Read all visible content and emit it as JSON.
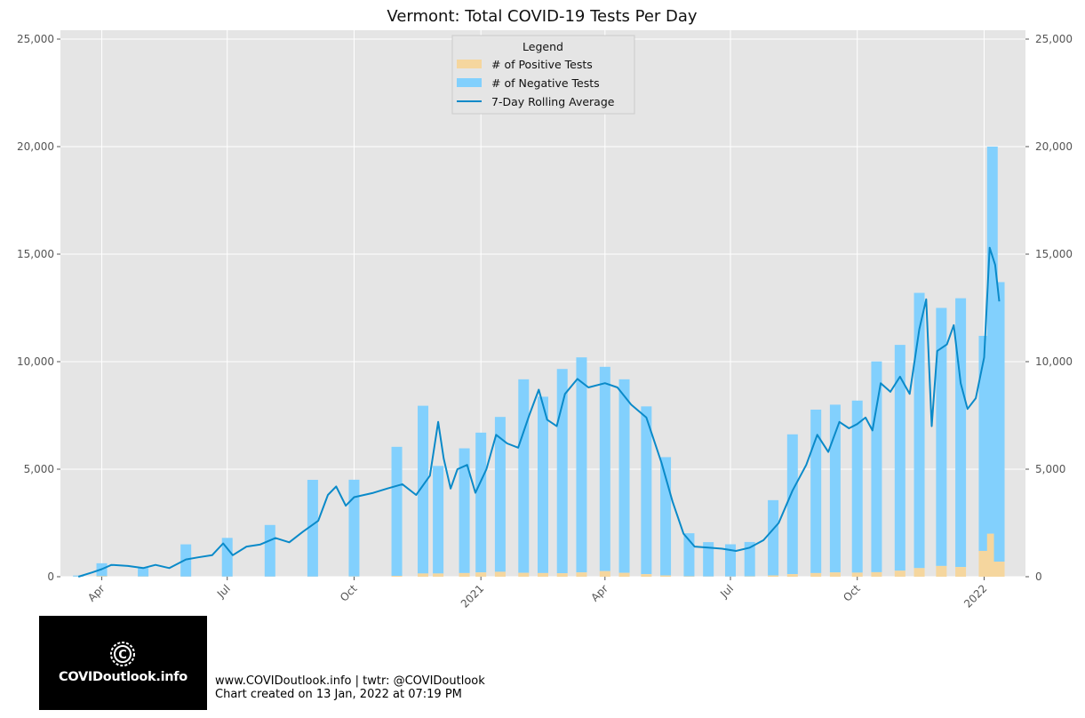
{
  "chart_data": {
    "type": "bar",
    "title": "Vermont: Total COVID-19 Tests Per Day",
    "ylim": [
      0,
      25000
    ],
    "y_ticks": [
      "0",
      "5,000",
      "10,000",
      "15,000",
      "20,000",
      "25,000"
    ],
    "y_tick_values": [
      0,
      5000,
      10000,
      15000,
      20000,
      25000
    ],
    "x_ticks": [
      "Apr",
      "Jul",
      "Oct",
      "2021",
      "Apr",
      "Jul",
      "Oct",
      "2022"
    ],
    "x_tick_dates": [
      "2020-04-01",
      "2020-07-01",
      "2020-10-01",
      "2021-01-01",
      "2021-04-01",
      "2021-07-01",
      "2021-10-01",
      "2022-01-01"
    ],
    "x_range": [
      "2020-03-02",
      "2022-01-31"
    ],
    "grid": true,
    "background": "#e5e5e5",
    "stacked": true,
    "legend": {
      "title": "Legend",
      "placement": "top-center",
      "entries": [
        "# of Positive Tests",
        "# of Negative Tests",
        "7-Day Rolling Average"
      ]
    },
    "series": [
      {
        "name": "# of Positive Tests",
        "kind": "bar",
        "color": "#f5d69e",
        "points": [
          [
            "2020-03-15",
            5
          ],
          [
            "2020-04-01",
            25
          ],
          [
            "2020-05-01",
            8
          ],
          [
            "2020-06-01",
            5
          ],
          [
            "2020-07-01",
            5
          ],
          [
            "2020-08-01",
            5
          ],
          [
            "2020-09-01",
            5
          ],
          [
            "2020-10-01",
            10
          ],
          [
            "2020-11-01",
            40
          ],
          [
            "2020-11-20",
            150
          ],
          [
            "2020-12-01",
            150
          ],
          [
            "2020-12-20",
            170
          ],
          [
            "2021-01-01",
            200
          ],
          [
            "2021-01-15",
            230
          ],
          [
            "2021-02-01",
            180
          ],
          [
            "2021-02-15",
            170
          ],
          [
            "2021-03-01",
            160
          ],
          [
            "2021-03-15",
            200
          ],
          [
            "2021-04-01",
            260
          ],
          [
            "2021-04-15",
            180
          ],
          [
            "2021-05-01",
            120
          ],
          [
            "2021-05-15",
            60
          ],
          [
            "2021-06-01",
            20
          ],
          [
            "2021-06-15",
            8
          ],
          [
            "2021-07-01",
            8
          ],
          [
            "2021-07-15",
            15
          ],
          [
            "2021-08-01",
            60
          ],
          [
            "2021-08-15",
            120
          ],
          [
            "2021-09-01",
            170
          ],
          [
            "2021-09-15",
            200
          ],
          [
            "2021-10-01",
            190
          ],
          [
            "2021-10-15",
            210
          ],
          [
            "2021-11-01",
            280
          ],
          [
            "2021-11-15",
            400
          ],
          [
            "2021-12-01",
            500
          ],
          [
            "2021-12-15",
            450
          ],
          [
            "2022-01-01",
            1200
          ],
          [
            "2022-01-07",
            2000
          ],
          [
            "2022-01-12",
            700
          ]
        ]
      },
      {
        "name": "# of Negative Tests",
        "kind": "bar",
        "color": "#82d0fd",
        "points": [
          [
            "2020-03-15",
            50
          ],
          [
            "2020-04-01",
            600
          ],
          [
            "2020-05-01",
            400
          ],
          [
            "2020-06-01",
            1500
          ],
          [
            "2020-07-01",
            1800
          ],
          [
            "2020-08-01",
            2400
          ],
          [
            "2020-09-01",
            4500
          ],
          [
            "2020-10-01",
            4500
          ],
          [
            "2020-11-01",
            6000
          ],
          [
            "2020-11-20",
            7800
          ],
          [
            "2020-12-01",
            5000
          ],
          [
            "2020-12-20",
            5800
          ],
          [
            "2021-01-01",
            6500
          ],
          [
            "2021-01-15",
            7200
          ],
          [
            "2021-02-01",
            9000
          ],
          [
            "2021-02-15",
            8200
          ],
          [
            "2021-03-01",
            9500
          ],
          [
            "2021-03-15",
            10000
          ],
          [
            "2021-04-01",
            9500
          ],
          [
            "2021-04-15",
            9000
          ],
          [
            "2021-05-01",
            7800
          ],
          [
            "2021-05-15",
            5500
          ],
          [
            "2021-06-01",
            2000
          ],
          [
            "2021-06-15",
            1600
          ],
          [
            "2021-07-01",
            1500
          ],
          [
            "2021-07-15",
            1600
          ],
          [
            "2021-08-01",
            3500
          ],
          [
            "2021-08-15",
            6500
          ],
          [
            "2021-09-01",
            7600
          ],
          [
            "2021-09-15",
            7800
          ],
          [
            "2021-10-01",
            8000
          ],
          [
            "2021-10-15",
            9800
          ],
          [
            "2021-11-01",
            10500
          ],
          [
            "2021-11-15",
            12800
          ],
          [
            "2021-12-01",
            12000
          ],
          [
            "2021-12-15",
            12500
          ],
          [
            "2022-01-01",
            10000
          ],
          [
            "2022-01-07",
            18000
          ],
          [
            "2022-01-12",
            13000
          ]
        ]
      },
      {
        "name": "7-Day Rolling Average",
        "kind": "line",
        "color": "#0a8ac9",
        "points": [
          [
            "2020-03-15",
            0
          ],
          [
            "2020-03-25",
            200
          ],
          [
            "2020-04-01",
            350
          ],
          [
            "2020-04-08",
            550
          ],
          [
            "2020-04-20",
            500
          ],
          [
            "2020-05-01",
            400
          ],
          [
            "2020-05-10",
            550
          ],
          [
            "2020-05-20",
            400
          ],
          [
            "2020-06-01",
            800
          ],
          [
            "2020-06-10",
            900
          ],
          [
            "2020-06-20",
            1000
          ],
          [
            "2020-06-28",
            1550
          ],
          [
            "2020-07-05",
            1000
          ],
          [
            "2020-07-15",
            1400
          ],
          [
            "2020-07-25",
            1500
          ],
          [
            "2020-08-05",
            1800
          ],
          [
            "2020-08-15",
            1600
          ],
          [
            "2020-08-25",
            2100
          ],
          [
            "2020-09-05",
            2600
          ],
          [
            "2020-09-12",
            3800
          ],
          [
            "2020-09-18",
            4200
          ],
          [
            "2020-09-25",
            3300
          ],
          [
            "2020-10-01",
            3700
          ],
          [
            "2020-10-15",
            3900
          ],
          [
            "2020-10-25",
            4100
          ],
          [
            "2020-11-05",
            4300
          ],
          [
            "2020-11-15",
            3800
          ],
          [
            "2020-11-25",
            4700
          ],
          [
            "2020-12-01",
            7200
          ],
          [
            "2020-12-05",
            5500
          ],
          [
            "2020-12-10",
            4100
          ],
          [
            "2020-12-15",
            5000
          ],
          [
            "2020-12-22",
            5200
          ],
          [
            "2020-12-28",
            3900
          ],
          [
            "2021-01-05",
            5000
          ],
          [
            "2021-01-12",
            6600
          ],
          [
            "2021-01-20",
            6200
          ],
          [
            "2021-01-28",
            6000
          ],
          [
            "2021-02-05",
            7500
          ],
          [
            "2021-02-12",
            8700
          ],
          [
            "2021-02-18",
            7300
          ],
          [
            "2021-02-25",
            7000
          ],
          [
            "2021-03-03",
            8500
          ],
          [
            "2021-03-12",
            9200
          ],
          [
            "2021-03-20",
            8800
          ],
          [
            "2021-04-01",
            9000
          ],
          [
            "2021-04-10",
            8800
          ],
          [
            "2021-04-20",
            8000
          ],
          [
            "2021-05-01",
            7400
          ],
          [
            "2021-05-12",
            5300
          ],
          [
            "2021-05-20",
            3500
          ],
          [
            "2021-05-28",
            2000
          ],
          [
            "2021-06-05",
            1400
          ],
          [
            "2021-06-15",
            1350
          ],
          [
            "2021-06-25",
            1300
          ],
          [
            "2021-07-05",
            1200
          ],
          [
            "2021-07-15",
            1350
          ],
          [
            "2021-07-25",
            1700
          ],
          [
            "2021-08-05",
            2500
          ],
          [
            "2021-08-15",
            4000
          ],
          [
            "2021-08-25",
            5200
          ],
          [
            "2021-09-02",
            6600
          ],
          [
            "2021-09-10",
            5800
          ],
          [
            "2021-09-18",
            7200
          ],
          [
            "2021-09-25",
            6900
          ],
          [
            "2021-10-01",
            7100
          ],
          [
            "2021-10-07",
            7400
          ],
          [
            "2021-10-12",
            6800
          ],
          [
            "2021-10-18",
            9000
          ],
          [
            "2021-10-25",
            8600
          ],
          [
            "2021-11-01",
            9300
          ],
          [
            "2021-11-08",
            8500
          ],
          [
            "2021-11-15",
            11500
          ],
          [
            "2021-11-20",
            12900
          ],
          [
            "2021-11-24",
            7000
          ],
          [
            "2021-11-28",
            10500
          ],
          [
            "2021-12-05",
            10800
          ],
          [
            "2021-12-10",
            11700
          ],
          [
            "2021-12-15",
            9000
          ],
          [
            "2021-12-20",
            7800
          ],
          [
            "2021-12-26",
            8300
          ],
          [
            "2022-01-01",
            10200
          ],
          [
            "2022-01-05",
            15300
          ],
          [
            "2022-01-09",
            14500
          ],
          [
            "2022-01-12",
            12800
          ]
        ]
      }
    ]
  },
  "footer": {
    "line1": "www.COVIDoutlook.info | twtr: @COVIDoutlook",
    "line2": "Chart created on 13 Jan, 2022 at 07:19 PM"
  },
  "logo": {
    "text": "COVIDoutlook.info",
    "icon": "coronavirus-c-icon"
  }
}
